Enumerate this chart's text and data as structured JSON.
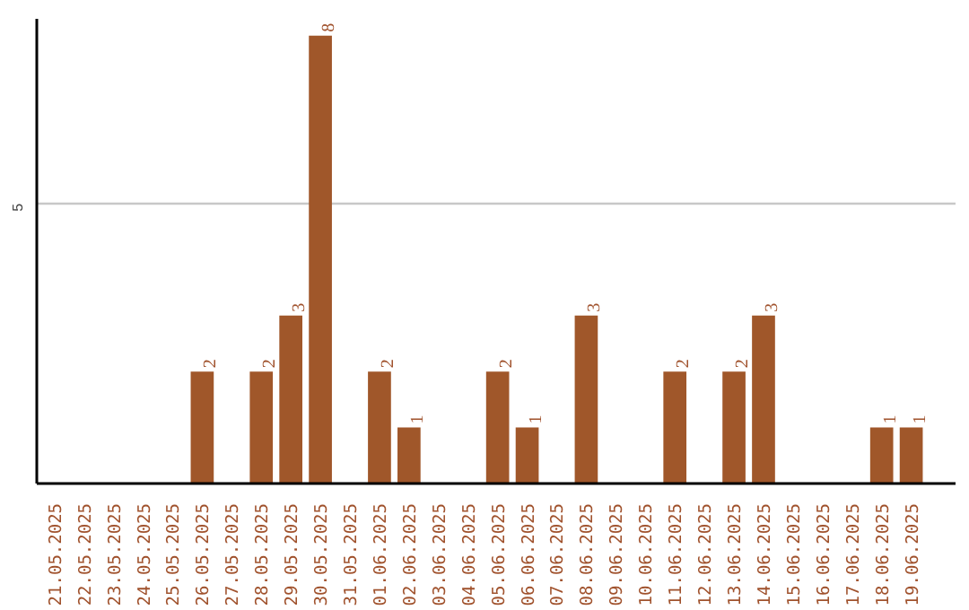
{
  "chart_data": {
    "type": "bar",
    "categories": [
      "21.05.2025",
      "22.05.2025",
      "23.05.2025",
      "24.05.2025",
      "25.05.2025",
      "26.05.2025",
      "27.05.2025",
      "28.05.2025",
      "29.05.2025",
      "30.05.2025",
      "31.05.2025",
      "01.06.2025",
      "02.06.2025",
      "03.06.2025",
      "04.06.2025",
      "05.06.2025",
      "06.06.2025",
      "07.06.2025",
      "08.06.2025",
      "09.06.2025",
      "10.06.2025",
      "11.06.2025",
      "12.06.2025",
      "13.06.2025",
      "14.06.2025",
      "15.06.2025",
      "16.06.2025",
      "17.06.2025",
      "18.06.2025",
      "19.06.2025"
    ],
    "values": [
      0,
      0,
      0,
      0,
      0,
      2,
      0,
      2,
      3,
      8,
      0,
      2,
      1,
      0,
      0,
      2,
      1,
      0,
      3,
      0,
      0,
      2,
      0,
      2,
      3,
      0,
      0,
      0,
      1,
      1
    ],
    "value_labels": [
      null,
      null,
      null,
      null,
      null,
      "2",
      null,
      "2",
      "3",
      "8",
      null,
      "2",
      "1",
      null,
      null,
      "2",
      "1",
      null,
      "3",
      null,
      null,
      "2",
      null,
      "2",
      "3",
      null,
      null,
      null,
      "1",
      "1"
    ],
    "color": "#a0572a",
    "ylim": [
      0,
      8.3
    ],
    "yticks": [
      5
    ],
    "grid": "y"
  }
}
